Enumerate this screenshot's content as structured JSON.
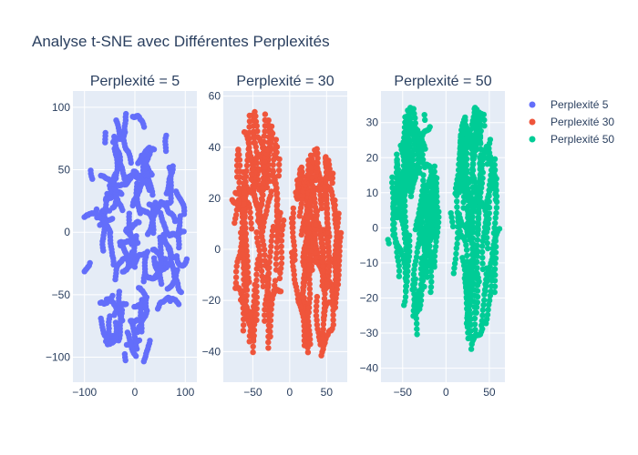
{
  "title": "Analyse t-SNE avec Différentes Perplexités",
  "chart_data": [
    {
      "type": "scatter",
      "title": "Perplexité = 5",
      "series": [
        {
          "name": "Perplexité 5",
          "color": "#636efa"
        }
      ],
      "xlim": [
        -123,
        123
      ],
      "ylim": [
        -120,
        113
      ],
      "xticks": [
        -100,
        0,
        100
      ],
      "yticks": [
        -100,
        -50,
        0,
        50,
        100
      ],
      "tick_labels_x": [
        "−100",
        "0",
        "100"
      ],
      "tick_labels_y": [
        "−100",
        "−50",
        "0",
        "50",
        "100"
      ],
      "shape": "single-oval-cloud",
      "extent_x": [
        -105,
        105
      ],
      "extent_y": [
        -105,
        98
      ],
      "grid": true
    },
    {
      "type": "scatter",
      "title": "Perplexité = 30",
      "series": [
        {
          "name": "Perplexité 30",
          "color": "#ef553b"
        }
      ],
      "xlim": [
        -90,
        78
      ],
      "ylim": [
        -52,
        62
      ],
      "xticks": [
        -50,
        0,
        50
      ],
      "yticks": [
        -40,
        -20,
        0,
        20,
        40,
        60
      ],
      "tick_labels_x": [
        "−50",
        "0",
        "50"
      ],
      "tick_labels_y": [
        "−40",
        "−20",
        "0",
        "20",
        "40",
        "60"
      ],
      "shape": "two-vertical-clusters",
      "clusters": [
        {
          "x": [
            -80,
            -5
          ],
          "y": [
            -45,
            55
          ]
        },
        {
          "x": [
            0,
            72
          ],
          "y": [
            -45,
            40
          ]
        }
      ],
      "grid": true
    },
    {
      "type": "scatter",
      "title": "Perplexité = 50",
      "series": [
        {
          "name": "Perplexité 50",
          "color": "#00cc96"
        }
      ],
      "xlim": [
        -75,
        68
      ],
      "ylim": [
        -44,
        39
      ],
      "xticks": [
        -50,
        0,
        50
      ],
      "yticks": [
        -40,
        -30,
        -20,
        -10,
        0,
        10,
        20,
        30
      ],
      "tick_labels_x": [
        "−50",
        "0",
        "50"
      ],
      "tick_labels_y": [
        "−40",
        "−30",
        "−20",
        "−10",
        "0",
        "10",
        "20",
        "30"
      ],
      "shape": "two-vertical-clusters",
      "clusters": [
        {
          "x": [
            -68,
            -2
          ],
          "y": [
            -33,
            35
          ]
        },
        {
          "x": [
            5,
            62
          ],
          "y": [
            -39,
            35
          ]
        }
      ],
      "grid": true
    }
  ],
  "legend": {
    "placement": "top-right",
    "items": [
      {
        "label": "Perplexité 5",
        "color": "#636efa"
      },
      {
        "label": "Perplexité 30",
        "color": "#ef553b"
      },
      {
        "label": "Perplexité 50",
        "color": "#00cc96"
      }
    ]
  }
}
